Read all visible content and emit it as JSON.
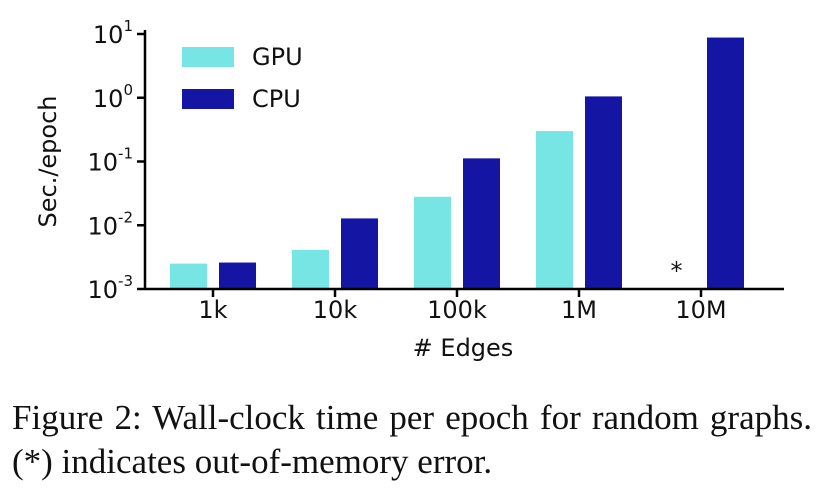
{
  "caption": "Figure 2: Wall-clock time per epoch for random graphs. (*) indicates out-of-memory error.",
  "colors": {
    "gpu": "#78e5e5",
    "cpu": "#1515a3",
    "axis": "#000000",
    "text": "#111111"
  },
  "chart_data": {
    "type": "bar",
    "title": "",
    "xlabel": "# Edges",
    "ylabel": "Sec./epoch",
    "yscale": "log",
    "ylim": [
      0.001,
      10
    ],
    "yticks": [
      {
        "value": 0.001,
        "base": "10",
        "exp": "-3"
      },
      {
        "value": 0.01,
        "base": "10",
        "exp": "-2"
      },
      {
        "value": 0.1,
        "base": "10",
        "exp": "-1"
      },
      {
        "value": 1,
        "base": "10",
        "exp": "0"
      },
      {
        "value": 10,
        "base": "10",
        "exp": "1"
      }
    ],
    "categories": [
      "1k",
      "10k",
      "100k",
      "1M",
      "10M"
    ],
    "series": [
      {
        "name": "GPU",
        "color": "#78e5e5",
        "values": [
          0.0025,
          0.0041,
          0.028,
          0.3,
          null
        ]
      },
      {
        "name": "CPU",
        "color": "#1515a3",
        "values": [
          0.0026,
          0.0128,
          0.112,
          1.05,
          8.8
        ]
      }
    ],
    "legend": "top-left",
    "grid": false,
    "annotations": [
      {
        "category": "10M",
        "series": "GPU",
        "text": "*"
      }
    ]
  }
}
